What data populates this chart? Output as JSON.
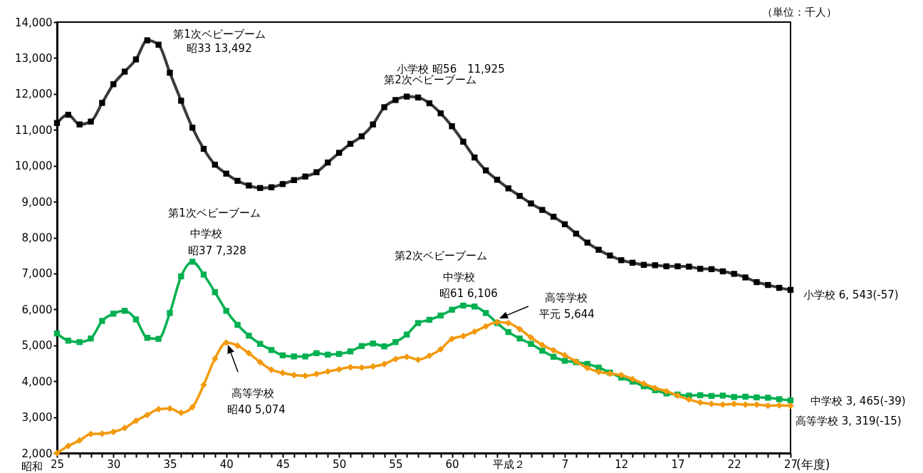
{
  "chart_data": {
    "type": "line",
    "xlabel": "(年度)",
    "categories": [
      "25",
      null,
      null,
      null,
      null,
      "30",
      null,
      null,
      null,
      null,
      "35",
      null,
      null,
      null,
      null,
      "40",
      null,
      null,
      null,
      null,
      "45",
      null,
      null,
      null,
      null,
      "50",
      null,
      null,
      null,
      null,
      "55",
      null,
      null,
      null,
      null,
      "60",
      null,
      null,
      null,
      null,
      "平成２",
      null,
      null,
      null,
      null,
      "7",
      null,
      null,
      null,
      null,
      "12",
      null,
      null,
      null,
      null,
      "17",
      null,
      null,
      null,
      null,
      "22",
      null,
      null,
      null,
      null,
      "27"
    ],
    "series": [
      {
        "color": "#3a3a3a",
        "marker": "square",
        "values": [
          11190,
          11420,
          11150,
          11230,
          11750,
          12270,
          12620,
          12960,
          13492,
          13370,
          12590,
          11810,
          11060,
          10470,
          10030,
          9780,
          9580,
          9450,
          9380,
          9400,
          9490,
          9600,
          9700,
          9820,
          10090,
          10360,
          10610,
          10820,
          11150,
          11630,
          11830,
          11925,
          11900,
          11740,
          11460,
          11100,
          10670,
          10230,
          9870,
          9610,
          9370,
          9160,
          8950,
          8770,
          8580,
          8370,
          8110,
          7860,
          7660,
          7500,
          7370,
          7300,
          7240,
          7230,
          7200,
          7200,
          7190,
          7130,
          7120,
          7060,
          6990,
          6890,
          6760,
          6680,
          6600,
          6543
        ]
      },
      {
        "color": "#00b050",
        "marker": "square",
        "values": [
          5330,
          5130,
          5090,
          5190,
          5680,
          5880,
          5960,
          5720,
          5210,
          5180,
          5900,
          6920,
          7328,
          6970,
          6480,
          5960,
          5570,
          5270,
          5040,
          4870,
          4720,
          4690,
          4690,
          4780,
          4740,
          4760,
          4830,
          4980,
          5050,
          4970,
          5090,
          5300,
          5620,
          5710,
          5830,
          5990,
          6106,
          6080,
          5900,
          5620,
          5370,
          5190,
          5040,
          4850,
          4680,
          4570,
          4530,
          4480,
          4380,
          4240,
          4100,
          3990,
          3860,
          3750,
          3660,
          3630,
          3600,
          3610,
          3590,
          3600,
          3560,
          3570,
          3550,
          3540,
          3500,
          3465
        ]
      },
      {
        "color": "#f39a0d",
        "marker": "diamond",
        "values": [
          2000,
          2200,
          2350,
          2530,
          2540,
          2590,
          2700,
          2900,
          3060,
          3220,
          3240,
          3120,
          3280,
          3900,
          4630,
          5074,
          4990,
          4780,
          4530,
          4320,
          4230,
          4170,
          4150,
          4200,
          4270,
          4330,
          4390,
          4380,
          4410,
          4480,
          4620,
          4680,
          4600,
          4710,
          4890,
          5180,
          5260,
          5380,
          5530,
          5644,
          5620,
          5450,
          5220,
          5010,
          4860,
          4720,
          4550,
          4370,
          4260,
          4210,
          4170,
          4060,
          3930,
          3810,
          3720,
          3600,
          3490,
          3410,
          3370,
          3350,
          3370,
          3350,
          3350,
          3320,
          3330,
          3319
        ]
      }
    ],
    "ylim": [
      2000,
      14000
    ],
    "yticks": [
      {
        "value": 2000,
        "label": "2,000"
      },
      {
        "value": 3000,
        "label": "3,000"
      },
      {
        "value": 4000,
        "label": "4,000"
      },
      {
        "value": 5000,
        "label": "5,000"
      },
      {
        "value": 6000,
        "label": "6,000"
      },
      {
        "value": 7000,
        "label": "7,000"
      },
      {
        "value": 8000,
        "label": "8,000"
      },
      {
        "value": 9000,
        "label": "9,000"
      },
      {
        "value": 10000,
        "label": "10,000"
      },
      {
        "value": 11000,
        "label": "11,000"
      },
      {
        "value": 12000,
        "label": "12,000"
      },
      {
        "value": 13000,
        "label": "13,000"
      },
      {
        "value": 14000,
        "label": "14,000"
      }
    ],
    "annotations": [
      "第1次ベビーブーム",
      "昭33 13,492",
      "小学校 昭56　11,925",
      "第2次ベビーブーム",
      "第1次ベビーブーム",
      "中学校",
      "昭37 7,328",
      "第2次ベビーブーム",
      "中学校",
      "昭61 6,106",
      "高等学校",
      "平元 5,644",
      "高等学校",
      "昭40 5,074",
      {
        "text": "小学校  6, 543(-57)",
        "x": "27",
        "y": 6543
      },
      {
        "text": "中学校  3, 465(-39)",
        "x": "27",
        "y": 3465
      },
      {
        "text": "高等学校  3, 319(-15)",
        "x": "27",
        "y": 3319
      },
      "（単位：千人）",
      "昭和"
    ],
    "grid": false
  }
}
